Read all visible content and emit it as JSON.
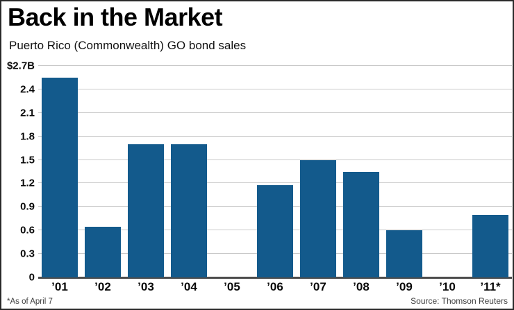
{
  "header": {
    "title": "Back in the Market",
    "subtitle": "Puerto Rico (Commonwealth) GO bond sales"
  },
  "footer": {
    "note": "*As of April 7",
    "source": "Source: Thomson Reuters"
  },
  "colors": {
    "bar": "#135a8c",
    "gridline": "#c9c9c9",
    "axis": "#4c4c4c"
  },
  "chart_data": {
    "type": "bar",
    "title": "Back in the Market",
    "subtitle": "Puerto Rico (Commonwealth) GO bond sales",
    "categories": [
      "’01",
      "’02",
      "’03",
      "’04",
      "’05",
      "’06",
      "’07",
      "’08",
      "’09",
      "’10",
      "’11*"
    ],
    "values": [
      2.55,
      0.65,
      1.7,
      1.7,
      0,
      1.18,
      1.5,
      1.35,
      0.6,
      0,
      0.8
    ],
    "unit": "billions of USD",
    "ylim": [
      0,
      2.7
    ],
    "yticks": [
      0,
      0.3,
      0.6,
      0.9,
      1.2,
      1.5,
      1.8,
      2.1,
      2.4,
      2.7
    ],
    "ytick_labels": [
      "0",
      "0.3",
      "0.6",
      "0.9",
      "1.2",
      "1.5",
      "1.8",
      "2.1",
      "2.4",
      "$2.7B"
    ],
    "grid": true,
    "legend": false,
    "footnote": "*As of April 7",
    "source": "Source: Thomson Reuters"
  }
}
